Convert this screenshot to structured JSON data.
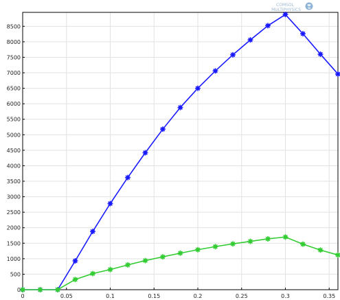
{
  "watermark": {
    "line1": "COMSOL",
    "line2": "MULTIPHYSICS"
  },
  "colors": {
    "series_a": "#1a1aff",
    "series_b": "#33cc33",
    "grid": "#e2e2e2",
    "axis": "#000000",
    "watermark": "#9db7cf"
  },
  "chart_data": {
    "type": "line",
    "title": "",
    "xlabel": "",
    "ylabel": "",
    "xlim": [
      0,
      0.36
    ],
    "ylim": [
      0,
      8950
    ],
    "xticks": [
      "0",
      "0.05",
      "0.1",
      "0.15",
      "0.2",
      "0.25",
      "0.3",
      "0.35"
    ],
    "yticks": [
      "0",
      "500",
      "1000",
      "1500",
      "2000",
      "2500",
      "3000",
      "3500",
      "4000",
      "4500",
      "5000",
      "5500",
      "6000",
      "6500",
      "7000",
      "7500",
      "8000",
      "8500"
    ],
    "grid": true,
    "legend": "none",
    "x": [
      0,
      0.02,
      0.04,
      0.06,
      0.08,
      0.1,
      0.12,
      0.14,
      0.16,
      0.18,
      0.2,
      0.22,
      0.24,
      0.26,
      0.28,
      0.3,
      0.32,
      0.34,
      0.36
    ],
    "series": [
      {
        "color": "#1a1aff",
        "marker": "star",
        "values": [
          0,
          0,
          0,
          930,
          1880,
          2780,
          3620,
          4420,
          5180,
          5880,
          6500,
          7060,
          7580,
          8060,
          8520,
          8880,
          8260,
          7600,
          6960
        ]
      },
      {
        "color": "#33cc33",
        "marker": "star",
        "values": [
          0,
          0,
          0,
          330,
          520,
          650,
          800,
          940,
          1060,
          1180,
          1290,
          1390,
          1480,
          1560,
          1640,
          1700,
          1470,
          1280,
          1120
        ]
      }
    ]
  }
}
